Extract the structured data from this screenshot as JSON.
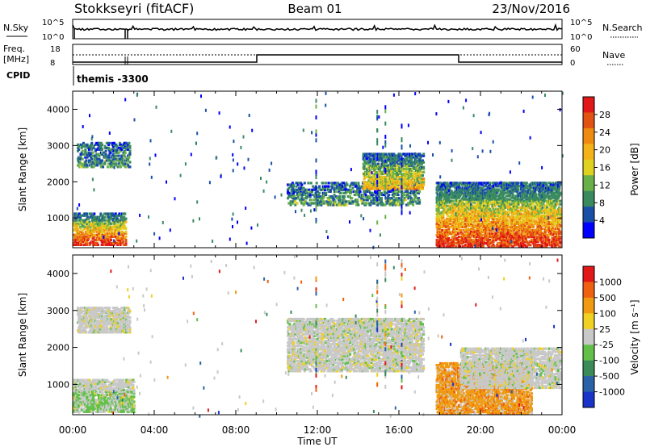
{
  "header": {
    "station": "Stokkseyri (fitACF)",
    "beam": "Beam 01",
    "date": "23/Nov/2016"
  },
  "strips": {
    "nsky_label": "N.Sky",
    "nsky_ticks": [
      "10^5",
      "10^0"
    ],
    "nsearch_label": "N.Search",
    "nsearch_ticks": [
      "10^5",
      "10^0"
    ],
    "freq_label": "Freq.",
    "freq_unit": "[MHz]",
    "freq_ticks": [
      "18",
      "8"
    ],
    "nave_label": "Nave",
    "nave_ticks": [
      "60",
      "0"
    ],
    "cpid_label": "CPID",
    "cpid_value": "themis -3300"
  },
  "colors": {
    "power_scale": [
      "#0000ff",
      "#1a4fa8",
      "#3a8a60",
      "#6ab04a",
      "#e0d020",
      "#f3b21a",
      "#ef8a10",
      "#e25212",
      "#e21818"
    ],
    "velocity_scale": [
      "#1a33c8",
      "#2a62a8",
      "#3a8a5a",
      "#62c04a",
      "#c8c8c8",
      "#f0d020",
      "#ef9a10",
      "#ef6010",
      "#e21818"
    ]
  },
  "chart_data": [
    {
      "type": "heatmap",
      "panel": "power",
      "ylabel": "Slant Range [km]",
      "x_ticks": [
        "00:00",
        "04:00",
        "08:00",
        "12:00",
        "16:00",
        "20:00",
        "00:00"
      ],
      "xlim_hours": [
        0,
        24
      ],
      "y_ticks": [
        1000,
        2000,
        3000,
        4000
      ],
      "ylim_km": [
        180,
        4500
      ],
      "colorbar": {
        "label": "Power [dB]",
        "ticks": [
          "28",
          "24",
          "20",
          "16",
          "12",
          "8",
          "4"
        ],
        "range": [
          0,
          30
        ]
      },
      "regions": [
        {
          "t0": 0.0,
          "t1": 2.6,
          "r0": 250,
          "r1": 1150,
          "level": "high"
        },
        {
          "t0": 0.2,
          "t1": 2.8,
          "r0": 2400,
          "r1": 3100,
          "level": "low"
        },
        {
          "t0": 10.5,
          "t1": 17.0,
          "r0": 1350,
          "r1": 2000,
          "level": "low"
        },
        {
          "t0": 14.2,
          "t1": 17.2,
          "r0": 1800,
          "r1": 2800,
          "level": "mid"
        },
        {
          "t0": 17.8,
          "t1": 23.9,
          "r0": 200,
          "r1": 2000,
          "level": "high"
        }
      ]
    },
    {
      "type": "heatmap",
      "panel": "velocity",
      "ylabel": "Slant Range [km]",
      "xlabel": "Time UT",
      "x_ticks": [
        "00:00",
        "04:00",
        "08:00",
        "12:00",
        "16:00",
        "20:00",
        "00:00"
      ],
      "xlim_hours": [
        0,
        24
      ],
      "y_ticks": [
        1000,
        2000,
        3000,
        4000
      ],
      "ylim_km": [
        180,
        4500
      ],
      "colorbar": {
        "label": "Velocity [m s⁻¹]",
        "ticks": [
          "1000",
          "500",
          "100",
          "25",
          "-25",
          "-100",
          "-500",
          "-1000"
        ],
        "range": [
          -1000,
          1000
        ]
      },
      "regions": [
        {
          "t0": 0.0,
          "t1": 3.0,
          "r0": 250,
          "r1": 1150,
          "level": "ground"
        },
        {
          "t0": 0.2,
          "t1": 2.8,
          "r0": 2400,
          "r1": 3100,
          "level": "ground"
        },
        {
          "t0": 10.5,
          "t1": 17.2,
          "r0": 1350,
          "r1": 2800,
          "level": "ground"
        },
        {
          "t0": 17.8,
          "t1": 22.5,
          "r0": 200,
          "r1": 1600,
          "level": "away"
        },
        {
          "t0": 19.0,
          "t1": 23.9,
          "r0": 900,
          "r1": 2000,
          "level": "ground"
        }
      ]
    }
  ]
}
